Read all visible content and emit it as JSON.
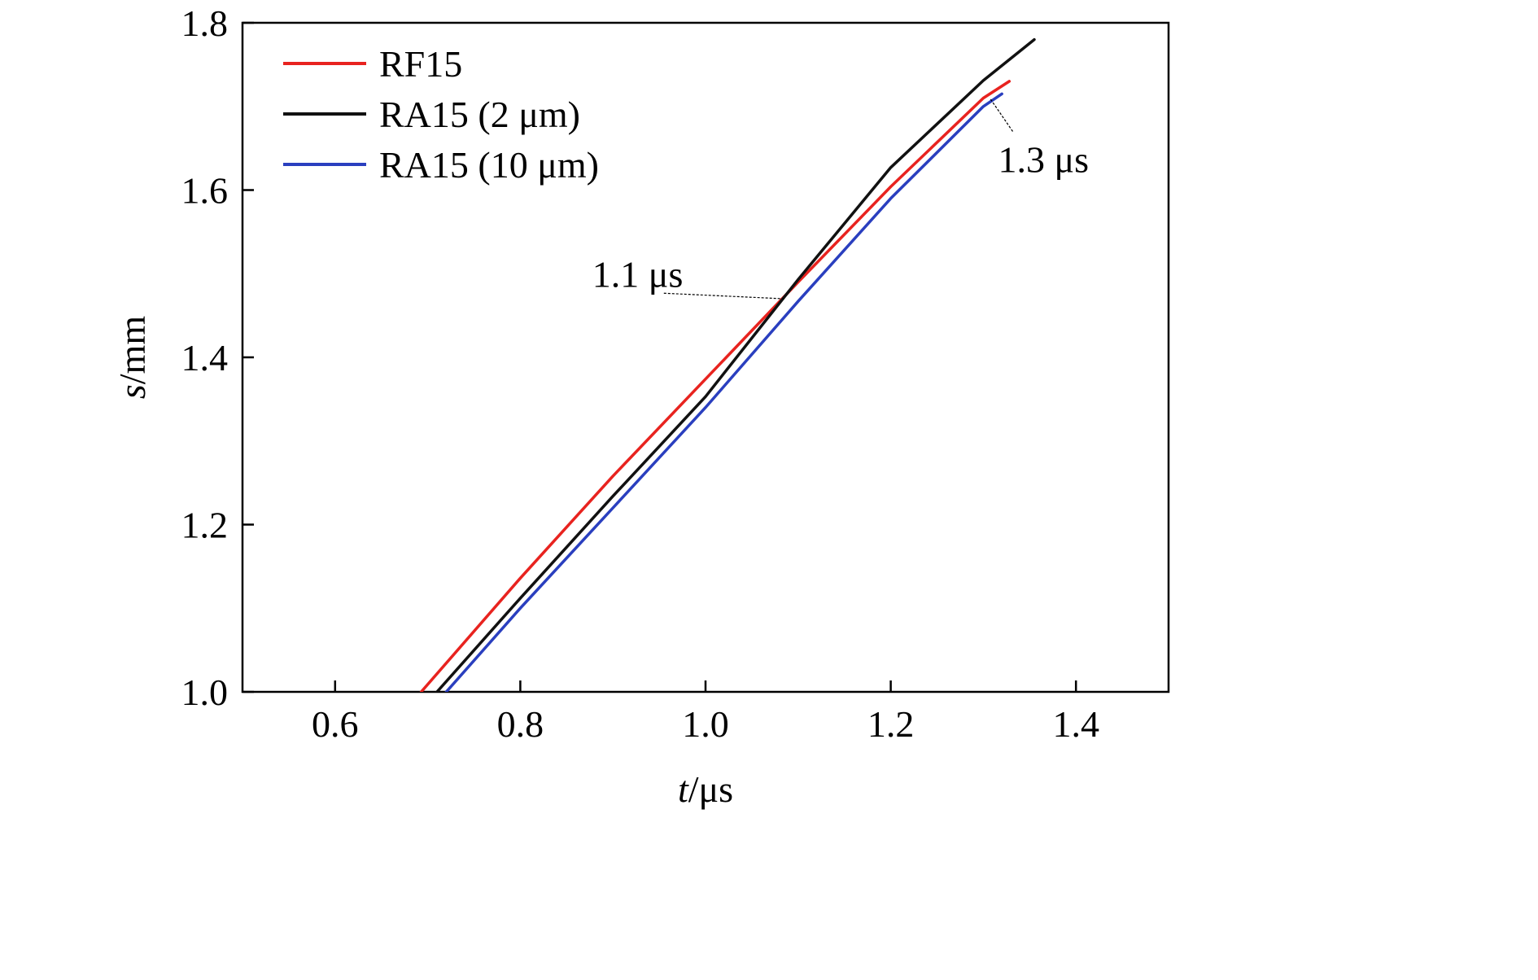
{
  "chart_data": {
    "type": "line",
    "title": "",
    "xlabel": {
      "italic": "t",
      "rest": "/μs"
    },
    "ylabel": {
      "italic": "s",
      "rest": "/mm"
    },
    "xlim": [
      0.5,
      1.5
    ],
    "ylim": [
      1.0,
      1.8
    ],
    "xticks": [
      0.6,
      0.8,
      1.0,
      1.2,
      1.4
    ],
    "xtick_labels": [
      "0.6",
      "0.8",
      "1.0",
      "1.2",
      "1.4"
    ],
    "yticks": [
      1.0,
      1.2,
      1.4,
      1.6,
      1.8
    ],
    "ytick_labels": [
      "1.0",
      "1.2",
      "1.4",
      "1.6",
      "1.8"
    ],
    "grid": false,
    "legend_position": "top-left",
    "series": [
      {
        "name": "RF15",
        "color": "#e8231f",
        "points": [
          [
            0.693,
            1.0
          ],
          [
            0.8,
            1.136
          ],
          [
            0.9,
            1.258
          ],
          [
            1.0,
            1.374
          ],
          [
            1.1,
            1.49
          ],
          [
            1.2,
            1.604
          ],
          [
            1.3,
            1.71
          ],
          [
            1.328,
            1.73
          ]
        ]
      },
      {
        "name": "RA15 (2 μm)",
        "color": "#111111",
        "points": [
          [
            0.71,
            1.0
          ],
          [
            0.8,
            1.112
          ],
          [
            0.9,
            1.234
          ],
          [
            1.0,
            1.353
          ],
          [
            1.1,
            1.493
          ],
          [
            1.2,
            1.627
          ],
          [
            1.3,
            1.731
          ],
          [
            1.355,
            1.78
          ]
        ]
      },
      {
        "name": "RA15 (10 μm)",
        "color": "#2a3fbf",
        "points": [
          [
            0.72,
            1.0
          ],
          [
            0.8,
            1.1
          ],
          [
            0.9,
            1.22
          ],
          [
            1.0,
            1.34
          ],
          [
            1.1,
            1.467
          ],
          [
            1.2,
            1.59
          ],
          [
            1.3,
            1.7
          ],
          [
            1.32,
            1.715
          ]
        ]
      }
    ],
    "annotations": [
      {
        "text": "1.1 μs",
        "target": [
          1.085,
          1.47
        ],
        "label_anchor": [
          0.955,
          1.5
        ]
      },
      {
        "text": "1.3 μs",
        "target": [
          1.307,
          1.71
        ],
        "label_anchor": [
          1.395,
          1.637
        ]
      }
    ]
  }
}
